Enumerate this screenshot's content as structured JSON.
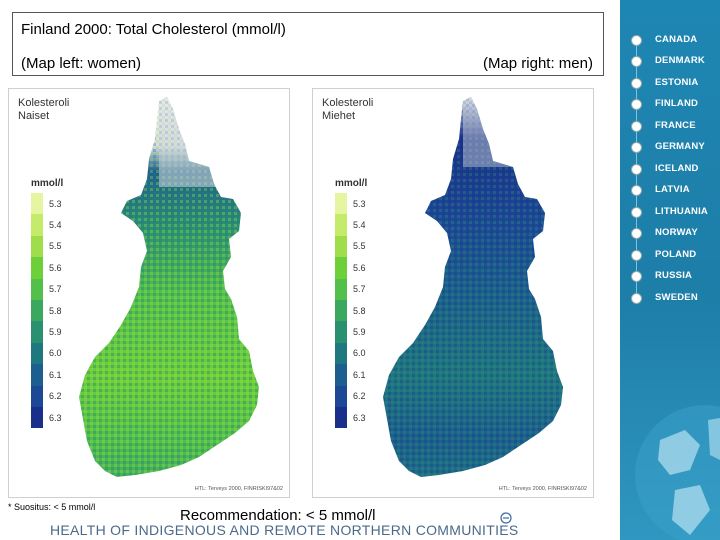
{
  "title": "Finland 2000: Total Cholesterol (mmol/l)",
  "subtitle_left": "(Map left: women)",
  "subtitle_right": "(Map right: men)",
  "maps": [
    {
      "caption_line1": "Kolesteroli",
      "caption_line2": "Naiset",
      "legend_title": "mmol/l",
      "legend_values": [
        "5.3",
        "5.4",
        "5.5",
        "5.6",
        "5.7",
        "5.8",
        "5.9",
        "6.0",
        "6.1",
        "6.2",
        "6.3"
      ],
      "credit": "HTL: Terveys 2000, FINRISKI97&02"
    },
    {
      "caption_line1": "Kolesteroli",
      "caption_line2": "Miehet",
      "legend_title": "mmol/l",
      "legend_values": [
        "5.3",
        "5.4",
        "5.5",
        "5.6",
        "5.7",
        "5.8",
        "5.9",
        "6.0",
        "6.1",
        "6.2",
        "6.3"
      ],
      "credit": "HTL: Terveys 2000, FINRISKI97&02"
    }
  ],
  "legend_colors": [
    "#e6f5a0",
    "#c4eb6a",
    "#9fdd4a",
    "#6dcf3a",
    "#52c04a",
    "#3aa85f",
    "#2a9170",
    "#1f7880",
    "#1c5f8e",
    "#1c4896",
    "#1a2f8a"
  ],
  "footnote": "* Suositus: < 5 mmol/l",
  "recommendation": "Recommendation: < 5 mmol/l",
  "project_title": "HEALTH OF INDIGENOUS AND REMOTE NORTHERN COMMUNITIES",
  "nav": {
    "items": [
      "CANADA",
      "DENMARK",
      "ESTONIA",
      "FINLAND",
      "FRANCE",
      "GERMANY",
      "ICELAND",
      "LATVIA",
      "LITHUANIA",
      "NORWAY",
      "POLAND",
      "RUSSIA",
      "SWEDEN"
    ]
  }
}
